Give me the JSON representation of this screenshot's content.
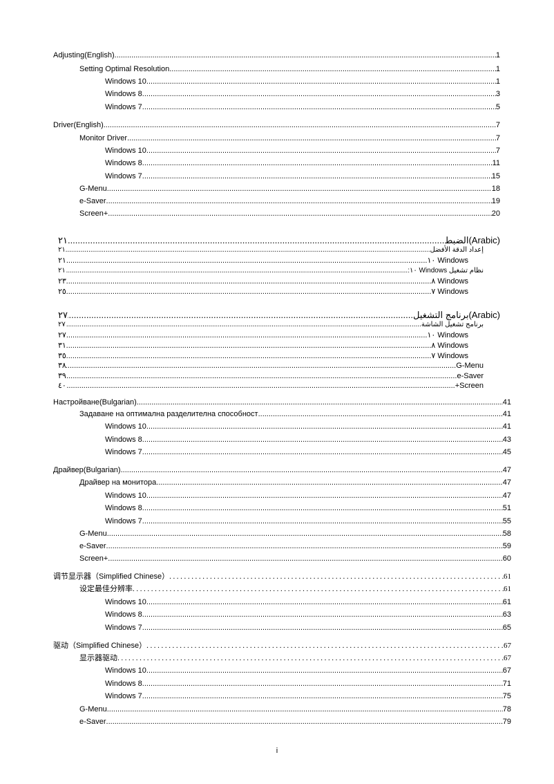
{
  "toc": [
    {
      "text": "Adjusting(English)",
      "page": "1"
    },
    {
      "text": "Setting Optimal Resolution",
      "page": "1"
    },
    {
      "text": "Windows 10",
      "page": "1"
    },
    {
      "text": "Windows 8",
      "page": "3"
    },
    {
      "text": "Windows 7",
      "page": "5"
    },
    {
      "text": "Driver(English)",
      "page": "7"
    },
    {
      "text": "Monitor Driver",
      "page": "7"
    },
    {
      "text": "Windows 10",
      "page": "7"
    },
    {
      "text": "Windows 8",
      "page": "11"
    },
    {
      "text": "Windows 7",
      "page": "15"
    },
    {
      "text": "G-Menu",
      "page": "18"
    },
    {
      "text": "e-Saver",
      "page": "19"
    },
    {
      "text": "Screen+",
      "page": "20"
    },
    {
      "text": "(Arabic)الضبط",
      "page": "٢١"
    },
    {
      "text": "إعداد الدقة الأفضل",
      "page": "٢١"
    },
    {
      "text": "Windows ١٠",
      "page": "٢١"
    },
    {
      "text": "نظام تشغيل Windows ١٠:",
      "page": "٢١"
    },
    {
      "text": "Windows ٨",
      "page": "٢٣"
    },
    {
      "text": "Windows ٧",
      "page": "٢٥"
    },
    {
      "text": "(Arabic)برنامج التشغيل",
      "page": "٢٧"
    },
    {
      "text": "برنامج تشغيل الشاشة",
      "page": "٢٧"
    },
    {
      "text": "Windows ١٠",
      "page": "٢٧"
    },
    {
      "text": "Windows ٨",
      "page": "٣١"
    },
    {
      "text": "Windows ٧",
      "page": "٣٥"
    },
    {
      "text": "G-Menu",
      "page": "٣٨"
    },
    {
      "text": "e-Saver",
      "page": "٣٩"
    },
    {
      "text": "Screen+",
      "page": "٤٠"
    },
    {
      "text": "Настройване(Bulgarian)",
      "page": "41"
    },
    {
      "text": "Задаване на оптимална разделителна способност",
      "page": "41"
    },
    {
      "text": "Windows 10",
      "page": "41"
    },
    {
      "text": "Windows 8",
      "page": "43"
    },
    {
      "text": "Windows 7",
      "page": "45"
    },
    {
      "text": "Драйвер(Bulgarian)",
      "page": "47"
    },
    {
      "text": "Драйвер на монитора",
      "page": "47"
    },
    {
      "text": "Windows 10",
      "page": "47"
    },
    {
      "text": "Windows 8",
      "page": "51"
    },
    {
      "text": "Windows 7",
      "page": "55"
    },
    {
      "text": "G-Menu",
      "page": "58"
    },
    {
      "text": "e-Saver",
      "page": "59"
    },
    {
      "text": "Screen+",
      "page": "60"
    },
    {
      "text": "调节显示器（Simplified Chinese）",
      "page": "61"
    },
    {
      "text": "设定最佳分辨率",
      "page": "61"
    },
    {
      "text": "Windows 10",
      "page": "61"
    },
    {
      "text": "Windows 8",
      "page": "63"
    },
    {
      "text": "Windows 7",
      "page": "65"
    },
    {
      "text": "驱动（Simplified Chinese）",
      "page": "67"
    },
    {
      "text": "显示器驱动",
      "page": "67"
    },
    {
      "text": "Windows 10",
      "page": "67"
    },
    {
      "text": "Windows 8",
      "page": "71"
    },
    {
      "text": "Windows 7",
      "page": "75"
    },
    {
      "text": "G-Menu",
      "page": "78"
    },
    {
      "text": "e-Saver",
      "page": "79"
    }
  ],
  "footer": {
    "page_number": "i"
  }
}
